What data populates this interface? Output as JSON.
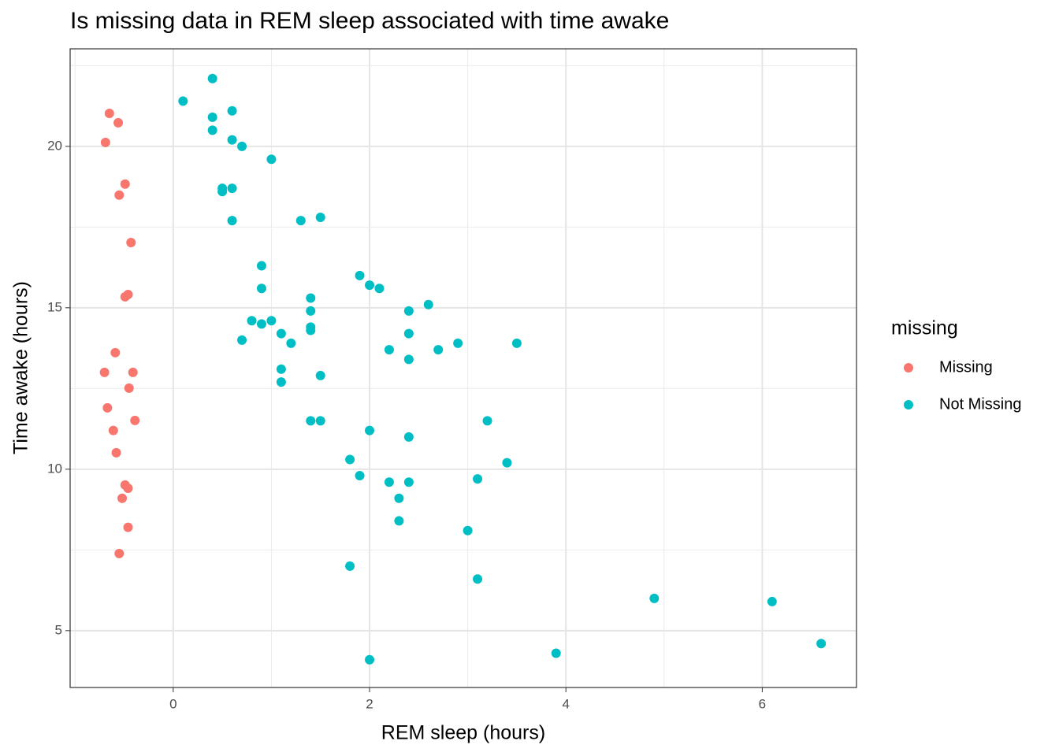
{
  "chart_data": {
    "type": "scatter",
    "title": "Is missing data in REM sleep associated with time awake",
    "x_label": "REM sleep (hours)",
    "y_label": "Time awake (hours)",
    "legend_title": "missing",
    "legend_position": "right",
    "grid": true,
    "xlim": [
      -1.05,
      6.96
    ],
    "ylim": [
      3.24,
      23.02
    ],
    "xticks": [
      0,
      2,
      4,
      6
    ],
    "yticks": [
      5,
      10,
      15,
      20
    ],
    "xminor": [
      -1,
      1,
      3,
      5
    ],
    "yminor": [
      7.5,
      12.5,
      17.5,
      22.5
    ],
    "series": [
      {
        "name": "Missing",
        "color": "#F8766D",
        "x": [
          -0.65,
          -0.56,
          -0.69,
          -0.49,
          -0.55,
          -0.43,
          -0.46,
          -0.49,
          -0.59,
          -0.7,
          -0.41,
          -0.45,
          -0.67,
          -0.39,
          -0.61,
          -0.58,
          -0.49,
          -0.46,
          -0.52,
          -0.46,
          -0.55
        ],
        "values": [
          21.02,
          20.73,
          20.12,
          18.83,
          18.49,
          17.02,
          15.41,
          15.34,
          13.61,
          13.0,
          13.0,
          12.51,
          11.9,
          11.51,
          11.2,
          10.51,
          9.51,
          9.41,
          9.1,
          8.2,
          7.39
        ]
      },
      {
        "name": "Not Missing",
        "color": "#00BFC4",
        "x": [
          0.1,
          0.4,
          0.4,
          0.6,
          0.4,
          0.6,
          0.7,
          1.0,
          0.5,
          0.6,
          0.5,
          0.6,
          1.3,
          1.5,
          0.9,
          0.9,
          1.9,
          2.0,
          2.1,
          1.4,
          2.6,
          2.4,
          1.4,
          0.8,
          1.0,
          0.9,
          1.4,
          1.4,
          1.1,
          2.4,
          0.7,
          1.2,
          2.9,
          3.5,
          2.2,
          2.7,
          2.4,
          1.1,
          1.5,
          1.1,
          1.4,
          1.5,
          3.2,
          2.0,
          2.4,
          1.8,
          3.4,
          1.9,
          3.1,
          2.2,
          2.4,
          2.3,
          2.3,
          3.0,
          1.8,
          3.1,
          4.9,
          6.1,
          6.6,
          3.9,
          2.0
        ],
        "values": [
          21.4,
          22.1,
          20.9,
          21.1,
          20.5,
          20.2,
          20.0,
          19.6,
          18.7,
          18.7,
          18.6,
          17.7,
          17.7,
          17.8,
          16.3,
          15.6,
          16.0,
          15.7,
          15.6,
          15.3,
          15.1,
          14.9,
          14.9,
          14.6,
          14.6,
          14.5,
          14.4,
          14.3,
          14.2,
          14.2,
          14.0,
          13.9,
          13.9,
          13.9,
          13.7,
          13.7,
          13.4,
          13.1,
          12.9,
          12.7,
          11.5,
          11.5,
          11.5,
          11.2,
          11.0,
          10.3,
          10.2,
          9.8,
          9.7,
          9.6,
          9.6,
          9.1,
          8.4,
          8.1,
          7.0,
          6.6,
          6.0,
          5.9,
          4.6,
          4.3,
          4.1
        ]
      }
    ]
  }
}
